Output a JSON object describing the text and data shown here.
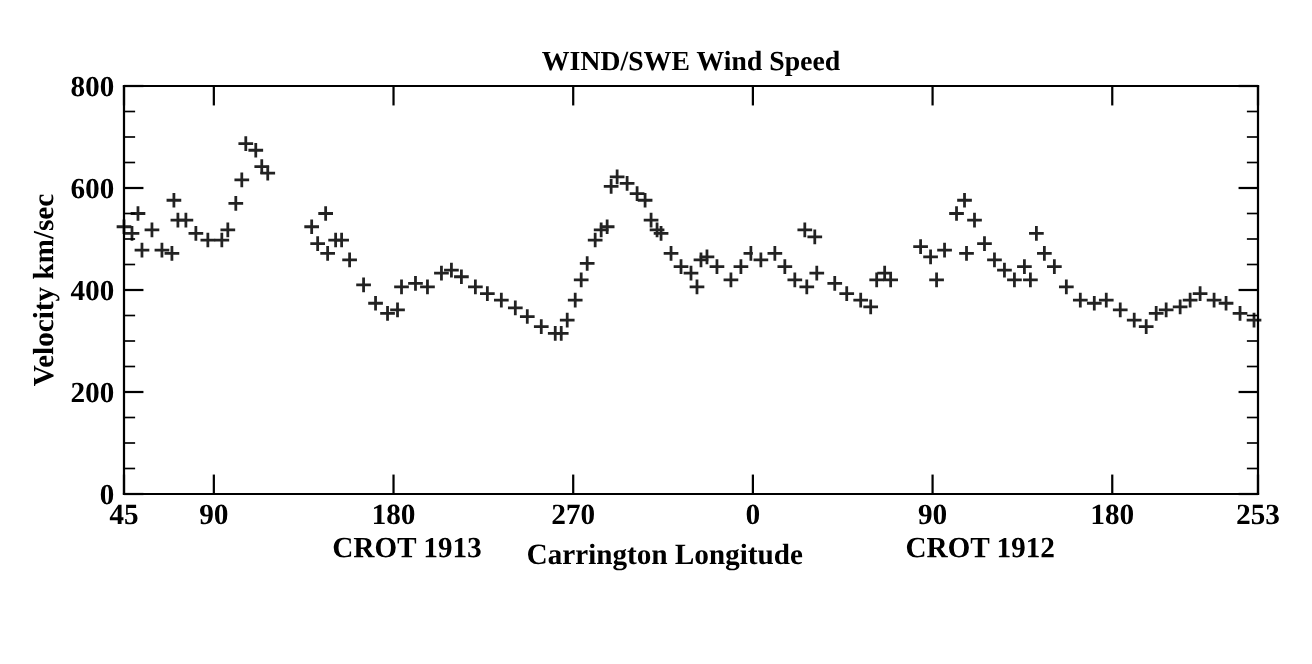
{
  "chart_data": [
    {
      "type": "scatter",
      "title": "WIND/SWE Wind Speed",
      "xlabel": "Carrington Longitude",
      "ylabel": "Velocity km/sec",
      "annotations": [
        "CROT 1913"
      ],
      "xlim": [
        45,
        360
      ],
      "xticks": [
        45,
        90,
        180,
        270
      ],
      "ylim": [
        0,
        800
      ],
      "yticks": [
        0,
        200,
        400,
        600,
        800
      ],
      "grid": false,
      "marker": "cross",
      "x": [
        45,
        49,
        52,
        54,
        59,
        64,
        69,
        70,
        72,
        76,
        81,
        87,
        94,
        97,
        101,
        104,
        106,
        111,
        114,
        117,
        139,
        142,
        146,
        147,
        151,
        154,
        158,
        165,
        171,
        177,
        182,
        184,
        191,
        197,
        204,
        209,
        214,
        221,
        227,
        234,
        241,
        247,
        254,
        261,
        264,
        267,
        271,
        274,
        277,
        281,
        284,
        287,
        289,
        292,
        297,
        302,
        306,
        309,
        312,
        314,
        319,
        324,
        329,
        332,
        334,
        337,
        342,
        349,
        354,
        359
      ],
      "series": [
        {
          "color": "#222222",
          "values": [
            524,
            511,
            550,
            478,
            518,
            478,
            472,
            576,
            537,
            537,
            511,
            498,
            498,
            518,
            570,
            616,
            687,
            674,
            642,
            629,
            524,
            491,
            550,
            472,
            498,
            498,
            459,
            410,
            374,
            354,
            361,
            406,
            413,
            406,
            433,
            439,
            426,
            406,
            393,
            380,
            365,
            348,
            328,
            315,
            315,
            341,
            380,
            420,
            452,
            498,
            518,
            524,
            603,
            622,
            609,
            589,
            576,
            537,
            518,
            511,
            472,
            446,
            433,
            406,
            459,
            465,
            446,
            420,
            446,
            472
          ]
        }
      ]
    },
    {
      "type": "scatter",
      "annotations": [
        "CROT 1912"
      ],
      "xlim": [
        0,
        253
      ],
      "xticks": [
        0,
        90,
        180,
        253
      ],
      "ylim": [
        0,
        800
      ],
      "yticks": [
        0,
        200,
        400,
        600,
        800
      ],
      "tick_labels": "x",
      "grid": false,
      "marker": "cross",
      "x": [
        4,
        11,
        16,
        21,
        27,
        26,
        31,
        32,
        41,
        47,
        54,
        59,
        62,
        66,
        69,
        84,
        89,
        92,
        96,
        102,
        106,
        107,
        111,
        116,
        121,
        126,
        131,
        136,
        139,
        142,
        146,
        151,
        157,
        164,
        171,
        177,
        184,
        191,
        197,
        202,
        207,
        214,
        219,
        224,
        231,
        237,
        244,
        251
      ],
      "series": [
        {
          "color": "#222222",
          "values": [
            459,
            472,
            446,
            420,
            406,
            518,
            504,
            433,
            413,
            393,
            380,
            367,
            420,
            433,
            420,
            485,
            465,
            420,
            478,
            550,
            576,
            472,
            537,
            491,
            459,
            439,
            420,
            446,
            420,
            511,
            472,
            446,
            406,
            380,
            374,
            380,
            361,
            341,
            328,
            354,
            361,
            367,
            380,
            393,
            380,
            374,
            354,
            341
          ]
        }
      ]
    }
  ]
}
